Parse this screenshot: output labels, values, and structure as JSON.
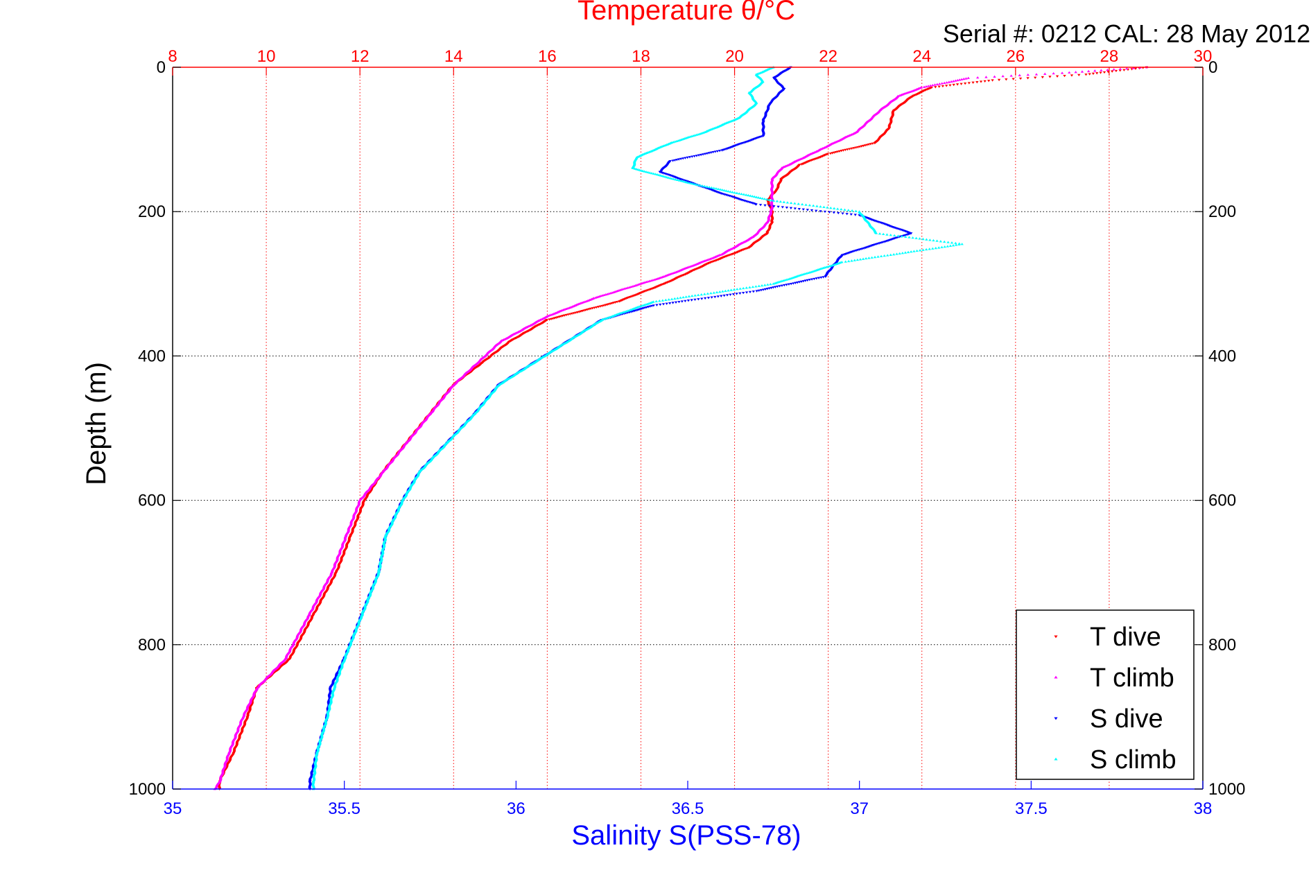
{
  "figure": {
    "top_axis_title": "Temperature θ/°C",
    "serial_text": "Serial #: 0212  CAL: 28 May 2012",
    "left_axis_title": "Depth (m)",
    "bottom_axis_title": "Salinity S(PSS-78)"
  },
  "colors": {
    "t_axis": "#ff0000",
    "s_axis": "#0000ff",
    "t_dive": "#ff0000",
    "t_climb": "#ff00ff",
    "s_dive": "#0000ff",
    "s_climb": "#00ffff",
    "grid_t": "#ff0000",
    "grid_depth": "#000000"
  },
  "chart_data": {
    "type": "scatter",
    "y_axis": {
      "label": "Depth (m)",
      "lim": [
        0,
        1000
      ],
      "reversed": true,
      "ticks": [
        0,
        200,
        400,
        600,
        800,
        1000
      ]
    },
    "x_bottom_axis": {
      "label": "Salinity S(PSS-78)",
      "lim": [
        35,
        38
      ],
      "ticks": [
        35,
        35.5,
        36,
        36.5,
        37,
        37.5,
        38
      ],
      "tick_labels": [
        "35",
        "35.5",
        "36",
        "36.5",
        "37",
        "37.5",
        "38"
      ]
    },
    "x_top_axis": {
      "label": "Temperature θ/°C",
      "lim": [
        8,
        30
      ],
      "ticks": [
        8,
        10,
        12,
        14,
        16,
        18,
        20,
        22,
        24,
        26,
        28,
        30
      ],
      "tick_labels": [
        "8",
        "10",
        "12",
        "14",
        "16",
        "18",
        "20",
        "22",
        "24",
        "26",
        "28",
        "30"
      ]
    },
    "grid": "dotted",
    "legend_position": "bottom-right",
    "series": [
      {
        "name": "T dive",
        "axis": "temperature",
        "marker": "triangle-down",
        "points": [
          [
            28.8,
            0
          ],
          [
            27.5,
            10
          ],
          [
            25.5,
            18
          ],
          [
            24.2,
            28
          ],
          [
            23.8,
            40
          ],
          [
            23.4,
            60
          ],
          [
            23.3,
            85
          ],
          [
            23.0,
            105
          ],
          [
            22.0,
            120
          ],
          [
            21.4,
            135
          ],
          [
            21.0,
            155
          ],
          [
            20.9,
            170
          ],
          [
            20.7,
            185
          ],
          [
            20.8,
            200
          ],
          [
            20.8,
            215
          ],
          [
            20.7,
            230
          ],
          [
            20.3,
            250
          ],
          [
            19.5,
            270
          ],
          [
            18.5,
            300
          ],
          [
            17.5,
            325
          ],
          [
            16.0,
            350
          ],
          [
            15.2,
            380
          ],
          [
            14.6,
            410
          ],
          [
            14.0,
            440
          ],
          [
            13.5,
            480
          ],
          [
            13.0,
            520
          ],
          [
            12.5,
            560
          ],
          [
            12.1,
            600
          ],
          [
            11.8,
            650
          ],
          [
            11.5,
            700
          ],
          [
            11.0,
            760
          ],
          [
            10.5,
            820
          ],
          [
            9.8,
            860
          ],
          [
            9.6,
            900
          ],
          [
            9.3,
            950
          ],
          [
            9.0,
            990
          ],
          [
            9.0,
            1000
          ]
        ]
      },
      {
        "name": "T climb",
        "axis": "temperature",
        "marker": "triangle-up",
        "points": [
          [
            28.8,
            0
          ],
          [
            27.0,
            8
          ],
          [
            25.0,
            15
          ],
          [
            24.0,
            28
          ],
          [
            23.5,
            40
          ],
          [
            23.1,
            60
          ],
          [
            22.6,
            90
          ],
          [
            21.8,
            115
          ],
          [
            21.0,
            140
          ],
          [
            20.8,
            155
          ],
          [
            20.8,
            175
          ],
          [
            20.8,
            195
          ],
          [
            20.7,
            215
          ],
          [
            20.4,
            235
          ],
          [
            19.7,
            260
          ],
          [
            18.5,
            290
          ],
          [
            17.0,
            320
          ],
          [
            16.0,
            345
          ],
          [
            15.0,
            380
          ],
          [
            14.5,
            410
          ],
          [
            14.0,
            440
          ],
          [
            13.5,
            480
          ],
          [
            13.0,
            520
          ],
          [
            12.5,
            560
          ],
          [
            12.0,
            600
          ],
          [
            11.7,
            650
          ],
          [
            11.4,
            700
          ],
          [
            10.9,
            760
          ],
          [
            10.4,
            820
          ],
          [
            9.8,
            860
          ],
          [
            9.5,
            900
          ],
          [
            9.2,
            950
          ],
          [
            9.0,
            990
          ],
          [
            8.9,
            1000
          ]
        ]
      },
      {
        "name": "S dive",
        "axis": "salinity",
        "marker": "triangle-down",
        "points": [
          [
            36.8,
            0
          ],
          [
            36.75,
            15
          ],
          [
            36.78,
            30
          ],
          [
            36.74,
            50
          ],
          [
            36.72,
            75
          ],
          [
            36.72,
            95
          ],
          [
            36.6,
            115
          ],
          [
            36.45,
            130
          ],
          [
            36.42,
            145
          ],
          [
            36.6,
            175
          ],
          [
            36.7,
            190
          ],
          [
            37.0,
            205
          ],
          [
            37.15,
            230
          ],
          [
            36.95,
            260
          ],
          [
            36.9,
            290
          ],
          [
            36.7,
            310
          ],
          [
            36.4,
            330
          ],
          [
            36.25,
            350
          ],
          [
            36.15,
            380
          ],
          [
            36.05,
            410
          ],
          [
            35.95,
            440
          ],
          [
            35.88,
            480
          ],
          [
            35.8,
            520
          ],
          [
            35.72,
            560
          ],
          [
            35.67,
            600
          ],
          [
            35.62,
            650
          ],
          [
            35.6,
            700
          ],
          [
            35.55,
            760
          ],
          [
            35.5,
            820
          ],
          [
            35.46,
            860
          ],
          [
            35.45,
            900
          ],
          [
            35.42,
            950
          ],
          [
            35.4,
            990
          ],
          [
            35.4,
            1000
          ]
        ]
      },
      {
        "name": "S climb",
        "axis": "salinity",
        "marker": "triangle-up",
        "points": [
          [
            36.75,
            0
          ],
          [
            36.7,
            10
          ],
          [
            36.72,
            20
          ],
          [
            36.68,
            35
          ],
          [
            36.7,
            50
          ],
          [
            36.65,
            70
          ],
          [
            36.55,
            90
          ],
          [
            36.45,
            105
          ],
          [
            36.35,
            125
          ],
          [
            36.34,
            140
          ],
          [
            36.5,
            160
          ],
          [
            36.75,
            185
          ],
          [
            37.0,
            200
          ],
          [
            37.05,
            230
          ],
          [
            37.3,
            245
          ],
          [
            36.95,
            270
          ],
          [
            36.75,
            300
          ],
          [
            36.4,
            325
          ],
          [
            36.25,
            350
          ],
          [
            36.15,
            380
          ],
          [
            36.05,
            410
          ],
          [
            35.95,
            440
          ],
          [
            35.88,
            480
          ],
          [
            35.8,
            520
          ],
          [
            35.72,
            560
          ],
          [
            35.67,
            600
          ],
          [
            35.62,
            650
          ],
          [
            35.6,
            700
          ],
          [
            35.55,
            760
          ],
          [
            35.5,
            820
          ],
          [
            35.47,
            860
          ],
          [
            35.45,
            900
          ],
          [
            35.42,
            950
          ],
          [
            35.41,
            990
          ],
          [
            35.41,
            1000
          ]
        ]
      }
    ]
  }
}
